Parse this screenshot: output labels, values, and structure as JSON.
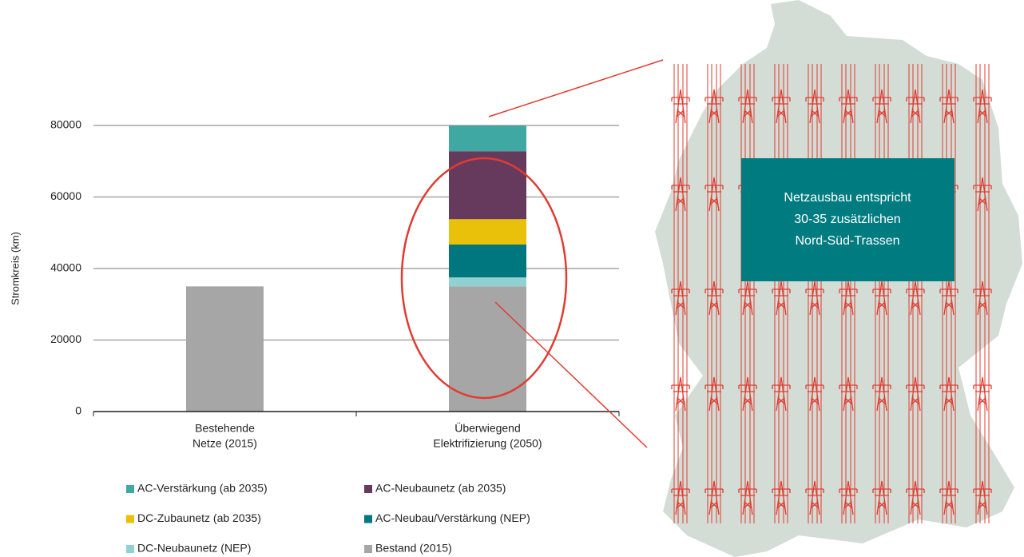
{
  "chart_data": {
    "type": "bar",
    "stacked": true,
    "y_label": "Stromkreis (km)",
    "categories": [
      [
        "Bestehende",
        "Netze (2015)"
      ],
      [
        "Überwiegend",
        "Elektrifizierung (2050)"
      ]
    ],
    "series": [
      {
        "name": "Bestand (2015)",
        "color": "#a6a6a6",
        "values": [
          35000,
          35000
        ]
      },
      {
        "name": "DC-Neubaunetz (NEP)",
        "color": "#92d1d2",
        "values": [
          0,
          2500
        ]
      },
      {
        "name": "AC-Neubau/Verstärkung (NEP)",
        "color": "#00777f",
        "values": [
          0,
          9200
        ]
      },
      {
        "name": "DC-Zubaunetz (ab 2035)",
        "color": "#e9c10a",
        "values": [
          0,
          7100
        ]
      },
      {
        "name": "AC-Neubaunetz (ab 2035)",
        "color": "#663a5c",
        "values": [
          0,
          19000
        ]
      },
      {
        "name": "AC-Verstärkung (ab 2035)",
        "color": "#3fa8a3",
        "values": [
          0,
          7200
        ]
      }
    ],
    "ylim": [
      0,
      80000
    ],
    "yticks": [
      0,
      20000,
      40000,
      60000,
      80000
    ],
    "grid": true,
    "annotation": [
      "Netzausbau entspricht",
      "30-35 zusätzlichen",
      "Nord-Süd-Trassen"
    ]
  }
}
